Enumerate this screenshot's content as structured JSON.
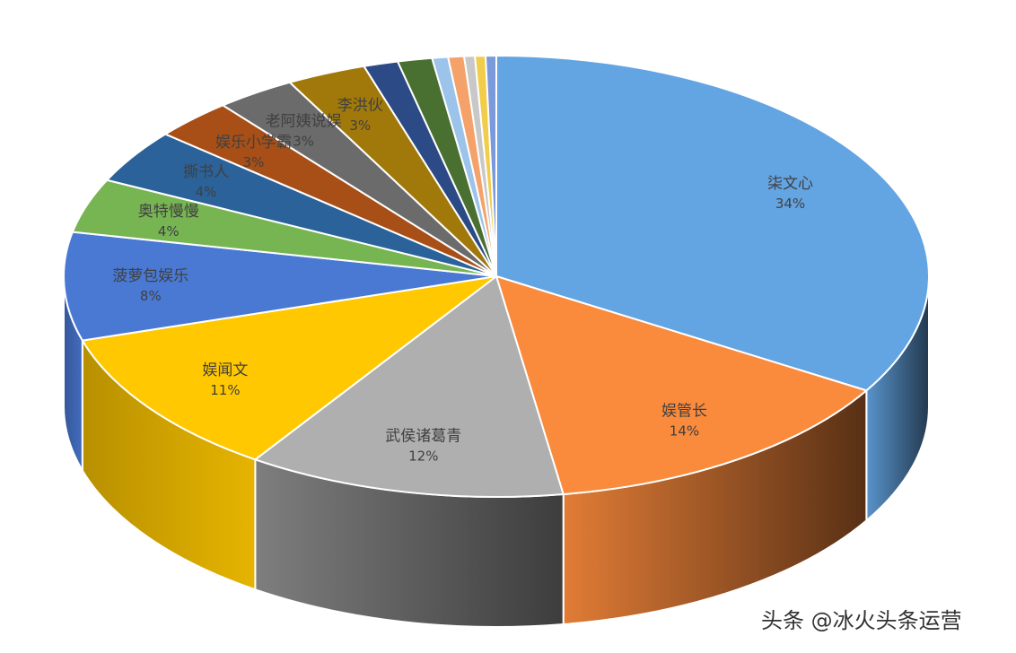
{
  "chart_data": {
    "type": "pie",
    "title": "",
    "slices": [
      {
        "name": "柒文心",
        "value": 34,
        "label": "34%",
        "color": "#63A4E2"
      },
      {
        "name": "娱管长",
        "value": 14,
        "label": "14%",
        "color": "#FA8A3C"
      },
      {
        "name": "武侯诸葛青",
        "value": 12,
        "label": "12%",
        "color": "#AFAFAF"
      },
      {
        "name": "娱闻文",
        "value": 11,
        "label": "11%",
        "color": "#FFC800"
      },
      {
        "name": "菠萝包娱乐",
        "value": 8,
        "label": "8%",
        "color": "#4A79D4"
      },
      {
        "name": "奥特慢慢",
        "value": 4,
        "label": "4%",
        "color": "#77B553"
      },
      {
        "name": "撕书人",
        "value": 4,
        "label": "4%",
        "color": "#2A6299"
      },
      {
        "name": "娱乐小学霸",
        "value": 3,
        "label": "3%",
        "color": "#A74F17"
      },
      {
        "name": "老阿姨说娱",
        "value": 3,
        "label": "3%",
        "color": "#6B6B6B"
      },
      {
        "name": "李洪伙",
        "value": 3,
        "label": "3%",
        "color": "#A1790A"
      },
      {
        "name": "",
        "value": 1.3,
        "label": "",
        "color": "#2C4A85"
      },
      {
        "name": "",
        "value": 1.3,
        "label": "",
        "color": "#4A7031"
      },
      {
        "name": "",
        "value": 0.6,
        "label": "",
        "color": "#9CC3EA"
      },
      {
        "name": "",
        "value": 0.6,
        "label": "",
        "color": "#F5A26A"
      },
      {
        "name": "",
        "value": 0.4,
        "label": "",
        "color": "#C8C8C8"
      },
      {
        "name": "",
        "value": 0.4,
        "label": "",
        "color": "#F2CD4A"
      },
      {
        "name": "",
        "value": 0.4,
        "label": "",
        "color": "#7A9ADC"
      }
    ],
    "legend": "none",
    "style": "3d-exploded-none"
  },
  "watermark": "头条 @冰火头条运营"
}
